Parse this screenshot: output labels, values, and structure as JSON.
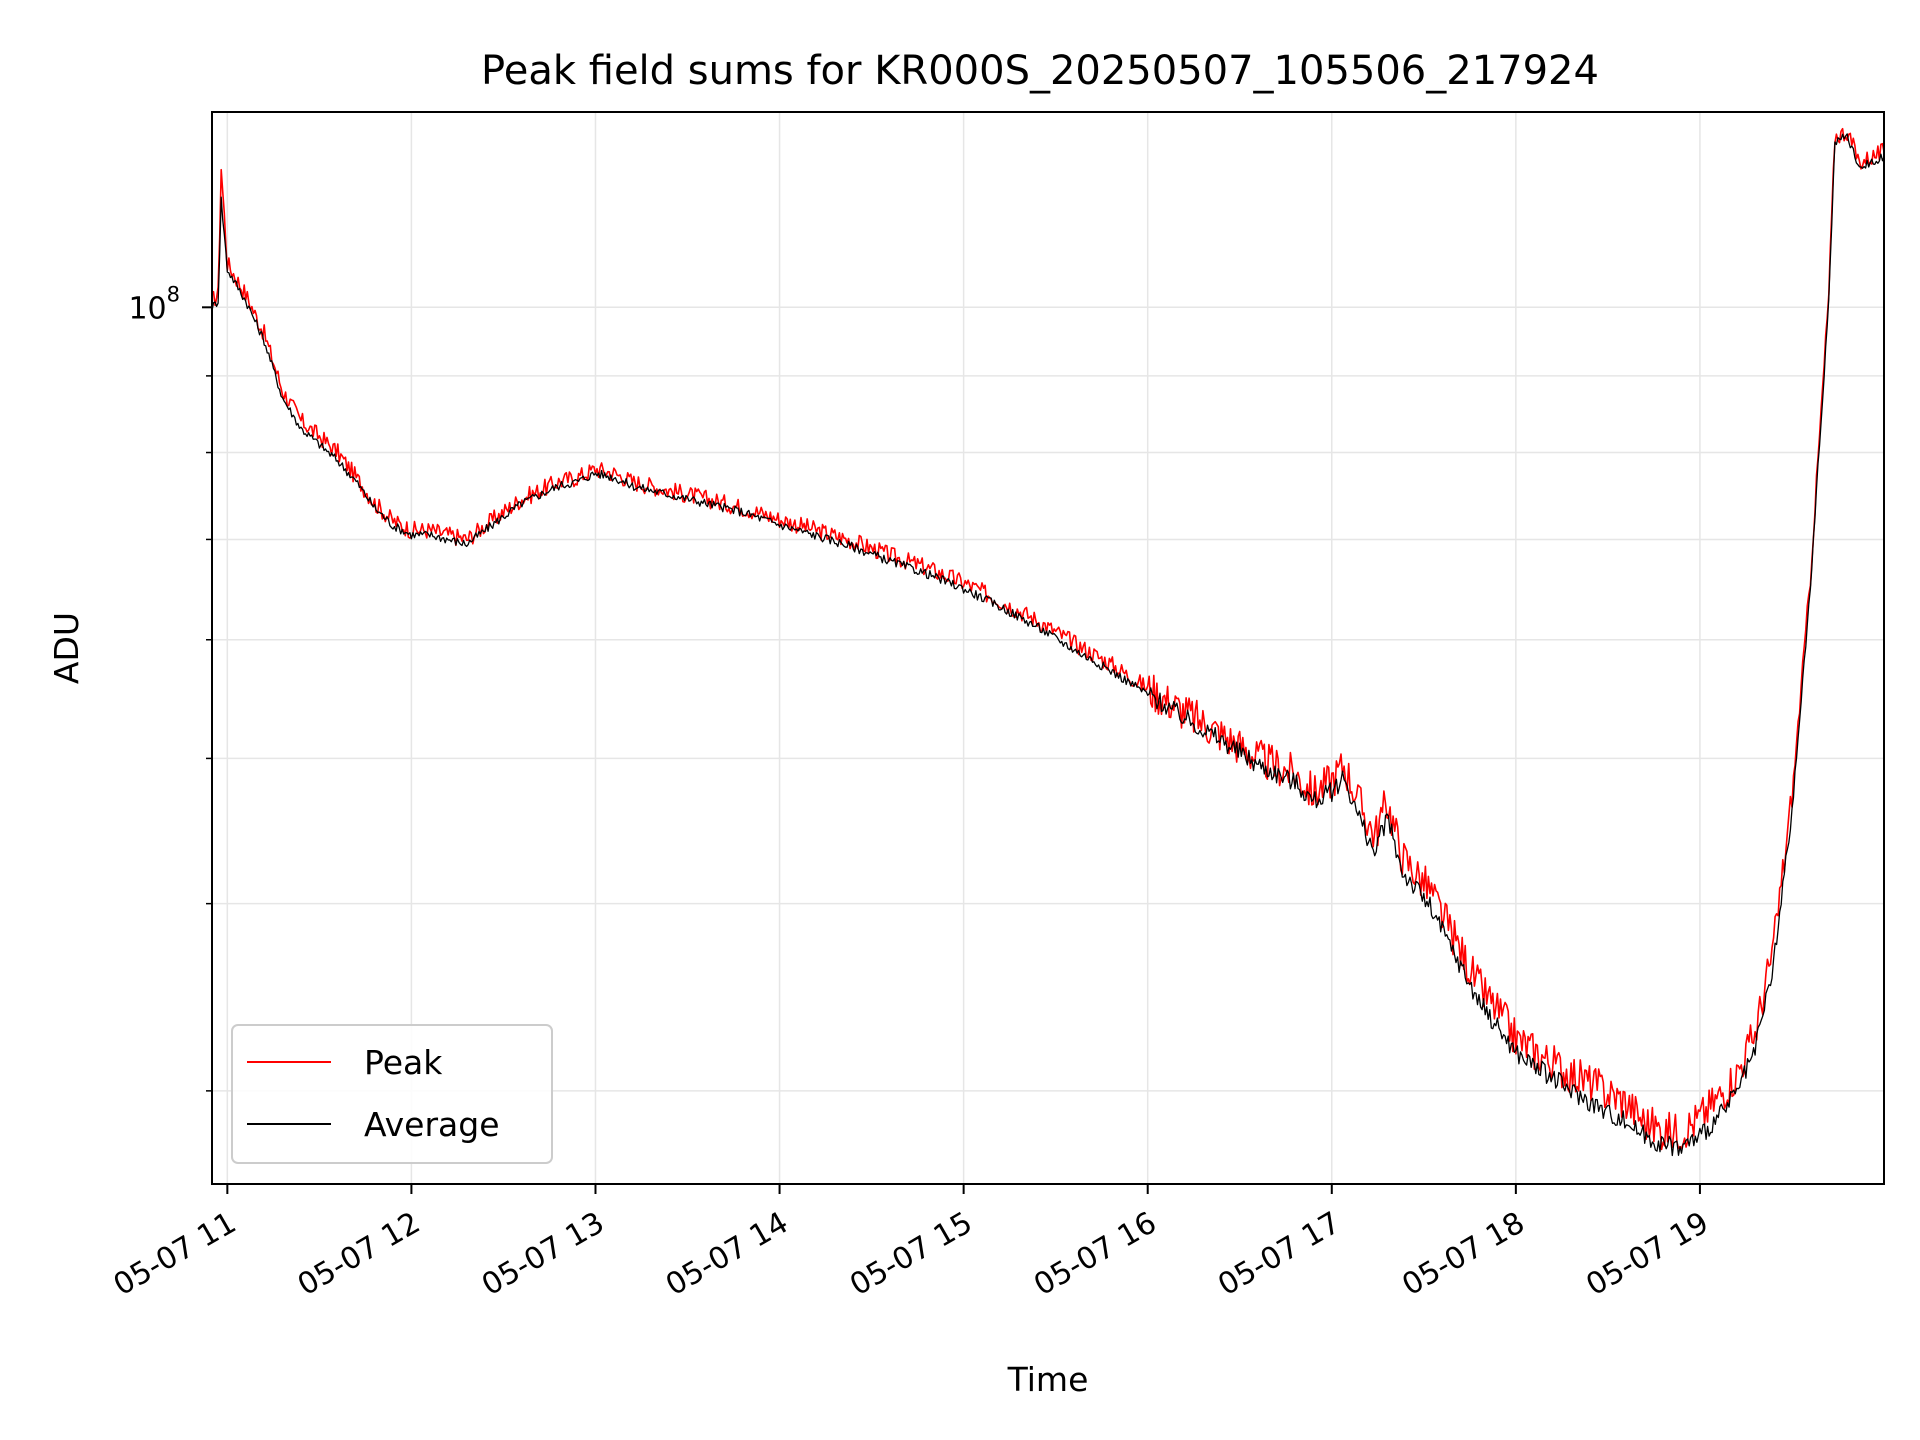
{
  "chart_data": {
    "type": "line",
    "title": "Peak field sums for KR000S_20250507_105506_217924",
    "xlabel": "Time",
    "ylabel": "ADU",
    "y_scale": "log",
    "y_tick_label": "10^8",
    "y_tick_value": 100000000,
    "ylim": [
      26000000,
      135000000
    ],
    "xlim": [
      "05-07 10:55",
      "05-07 20:00"
    ],
    "x_ticks": [
      "05-07 11",
      "05-07 12",
      "05-07 13",
      "05-07 14",
      "05-07 15",
      "05-07 16",
      "05-07 17",
      "05-07 18",
      "05-07 19"
    ],
    "grid": true,
    "legend_position": "lower-left",
    "colors": {
      "peak": "#ff0000",
      "average": "#000000"
    },
    "x": [
      "10:55",
      "10:57",
      "10:58",
      "11:00",
      "11:06",
      "11:12",
      "11:18",
      "11:24",
      "11:30",
      "11:36",
      "11:42",
      "11:48",
      "11:54",
      "12:00",
      "12:06",
      "12:12",
      "12:18",
      "12:24",
      "12:30",
      "12:36",
      "12:42",
      "12:48",
      "12:54",
      "13:00",
      "13:06",
      "13:12",
      "13:24",
      "13:36",
      "13:48",
      "14:00",
      "14:12",
      "14:24",
      "14:36",
      "14:48",
      "15:00",
      "15:12",
      "15:24",
      "15:36",
      "15:48",
      "16:00",
      "16:12",
      "16:24",
      "16:36",
      "16:48",
      "16:54",
      "17:00",
      "17:04",
      "17:09",
      "17:14",
      "17:18",
      "17:23",
      "17:28",
      "17:32",
      "17:40",
      "17:48",
      "17:56",
      "18:00",
      "18:06",
      "18:12",
      "18:18",
      "18:24",
      "18:30",
      "18:36",
      "18:42",
      "18:48",
      "18:54",
      "19:00",
      "19:06",
      "19:12",
      "19:18",
      "19:24",
      "19:30",
      "19:36",
      "19:42",
      "19:44",
      "19:48",
      "19:52",
      "19:56",
      "20:00"
    ],
    "series": [
      {
        "name": "Peak",
        "values": [
          101000000,
          102000000,
          124000000,
          107000000,
          102000000,
          96000000,
          88000000,
          84000000,
          82000000,
          80000000,
          77000000,
          74000000,
          72000000,
          71000000,
          71000000,
          70500000,
          70000000,
          71500000,
          73000000,
          74500000,
          75500000,
          76500000,
          77000000,
          78000000,
          77500000,
          76500000,
          75500000,
          74500000,
          73500000,
          72200000,
          71000000,
          69800000,
          68300000,
          67000000,
          65500000,
          63700000,
          61800000,
          59700000,
          57800000,
          55700000,
          53700000,
          51900000,
          50000000,
          48800000,
          47400000,
          48400000,
          49500000,
          46700000,
          44400000,
          46800000,
          43000000,
          41800000,
          40800000,
          37900000,
          35200000,
          33500000,
          32500000,
          31900000,
          31300000,
          30800000,
          30400000,
          29900000,
          29500000,
          28600000,
          28200000,
          28200000,
          28800000,
          29700000,
          30800000,
          32800000,
          37400000,
          47000000,
          66000000,
          102000000,
          130000000,
          131000000,
          125000000,
          126000000,
          127000000
        ]
      },
      {
        "name": "Average",
        "values": [
          100000000,
          101000000,
          118000000,
          106000000,
          101000000,
          95000000,
          87000000,
          83000000,
          81000000,
          79000000,
          76500000,
          73500000,
          71500000,
          70500000,
          70500000,
          70000000,
          69500000,
          71000000,
          72500000,
          74000000,
          75000000,
          76000000,
          76500000,
          77500000,
          77000000,
          76000000,
          75000000,
          74000000,
          73000000,
          71600000,
          70400000,
          69200000,
          67700000,
          66400000,
          64900000,
          63100000,
          61200000,
          59100000,
          57200000,
          55200000,
          53200000,
          51400000,
          49500000,
          48200000,
          46800000,
          47500000,
          48600000,
          45600000,
          43200000,
          45700000,
          42000000,
          40800000,
          39800000,
          37000000,
          34400000,
          32700000,
          31800000,
          31200000,
          30600000,
          30000000,
          29500000,
          29000000,
          28600000,
          28000000,
          27600000,
          27500000,
          28000000,
          28800000,
          29900000,
          31900000,
          36400000,
          46000000,
          65000000,
          101000000,
          129000000,
          130000000,
          124000000,
          125000000,
          126000000
        ]
      }
    ]
  }
}
